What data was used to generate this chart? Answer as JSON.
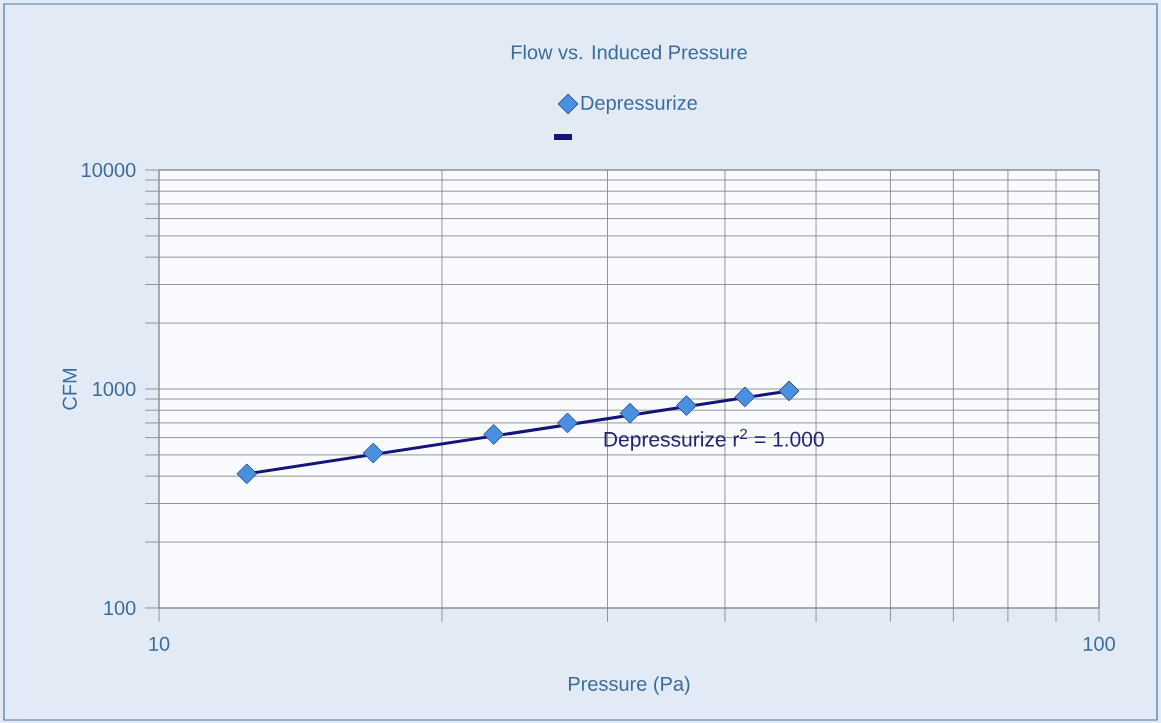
{
  "chart_data": {
    "type": "scatter",
    "title": "Flow vs. Induced Pressure",
    "xlabel": "Pressure (Pa)",
    "ylabel": "CFM",
    "log": "xy",
    "grid": true,
    "legend": "top",
    "xlim": [
      10,
      100
    ],
    "xticks": [
      10,
      {
        "value": 20,
        "label": null
      },
      {
        "value": 30,
        "label": null
      },
      {
        "value": 40,
        "label": null
      },
      {
        "value": 50,
        "label": null
      },
      {
        "value": 60,
        "label": null
      },
      {
        "value": 70,
        "label": null
      },
      {
        "value": 80,
        "label": null
      },
      {
        "value": 90,
        "label": null
      },
      100
    ],
    "ylim": [
      100,
      10000
    ],
    "yticks": [
      100,
      {
        "value": 200,
        "label": null
      },
      {
        "value": 300,
        "label": null
      },
      {
        "value": 400,
        "label": null
      },
      {
        "value": 500,
        "label": null
      },
      {
        "value": 600,
        "label": null
      },
      {
        "value": 700,
        "label": null
      },
      {
        "value": 800,
        "label": null
      },
      {
        "value": 900,
        "label": null
      },
      1000,
      {
        "value": 2000,
        "label": null
      },
      {
        "value": 3000,
        "label": null
      },
      {
        "value": 4000,
        "label": null
      },
      {
        "value": 5000,
        "label": null
      },
      {
        "value": 6000,
        "label": null
      },
      {
        "value": 7000,
        "label": null
      },
      {
        "value": 8000,
        "label": null
      },
      {
        "value": 9000,
        "label": null
      },
      10000
    ],
    "series": [
      {
        "name": "Depressurize",
        "marker": "diamond",
        "color": "#4a90e2",
        "x": [
          12.4,
          16.9,
          22.7,
          27.2,
          31.7,
          36.4,
          42.0,
          46.8
        ],
        "values": [
          410,
          510,
          620,
          700,
          775,
          840,
          920,
          980
        ]
      },
      {
        "type": "line",
        "color": "#14147a",
        "x": [
          12.4,
          46.8
        ],
        "values": [
          410,
          980
        ]
      }
    ],
    "annotations": [
      "Depressurize r$^{2}$ = 1.000"
    ]
  }
}
